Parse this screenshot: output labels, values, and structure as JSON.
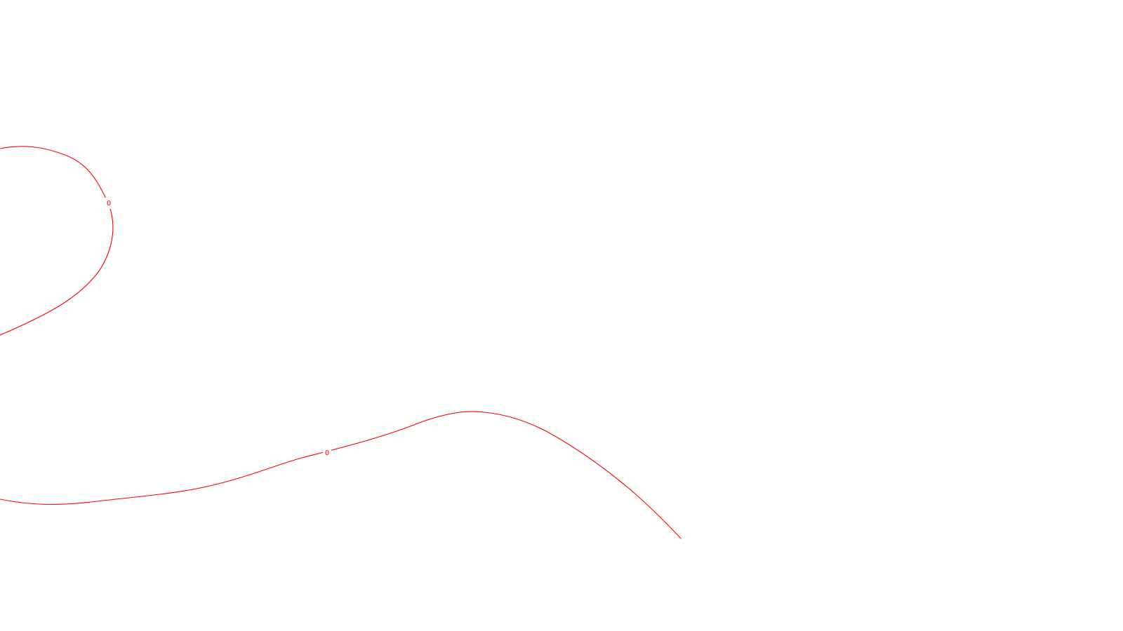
{
  "colors": {
    "background": "#ffffff",
    "contour": "#ff0000"
  },
  "contours": [
    {
      "label": "0"
    },
    {
      "label": "0"
    }
  ]
}
